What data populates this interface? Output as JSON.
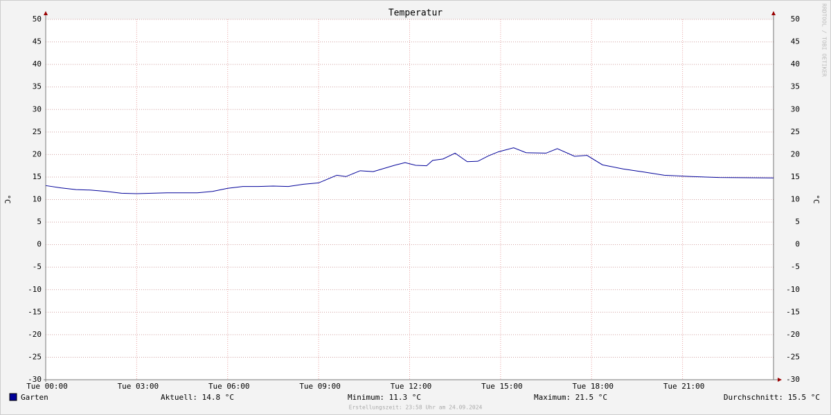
{
  "chart_data": {
    "type": "line",
    "title": "Temperatur",
    "y_label": "°C",
    "watermark": "RRDTOOL / TOBI OETIKER",
    "x": [
      0,
      0.5,
      1,
      1.5,
      2,
      2.5,
      3,
      3.5,
      4,
      4.5,
      5,
      5.5,
      6,
      6.5,
      7,
      7.5,
      8,
      8.5,
      9,
      9.6,
      9.9,
      10.37,
      10.8,
      11.5,
      11.85,
      12.2,
      12.56,
      12.76,
      13.1,
      13.5,
      13.9,
      14.25,
      14.6,
      14.93,
      15.43,
      15.84,
      16.5,
      16.87,
      17.44,
      17.85,
      18.36,
      19.04,
      19.73,
      20.4,
      21.3,
      22.2,
      24
    ],
    "series": [
      {
        "name": "Garten",
        "color": "#000099",
        "values": [
          13.1,
          12.6,
          12.2,
          12.1,
          11.8,
          11.4,
          11.3,
          11.4,
          11.5,
          11.5,
          11.5,
          11.8,
          12.5,
          12.9,
          12.9,
          13.0,
          12.9,
          13.4,
          13.7,
          15.4,
          15.1,
          16.4,
          16.2,
          17.6,
          18.2,
          17.6,
          17.5,
          18.7,
          19.0,
          20.3,
          18.4,
          18.5,
          19.7,
          20.6,
          21.5,
          20.4,
          20.3,
          21.3,
          19.6,
          19.8,
          17.7,
          16.8,
          16.1,
          15.4,
          15.1,
          14.9,
          14.8
        ]
      }
    ],
    "xlim": [
      0,
      24
    ],
    "xticks": [
      {
        "value": 0,
        "label": "Tue 00:00"
      },
      {
        "value": 3,
        "label": "Tue 03:00"
      },
      {
        "value": 6,
        "label": "Tue 06:00"
      },
      {
        "value": 9,
        "label": "Tue 09:00"
      },
      {
        "value": 12,
        "label": "Tue 12:00"
      },
      {
        "value": 15,
        "label": "Tue 15:00"
      },
      {
        "value": 18,
        "label": "Tue 18:00"
      },
      {
        "value": 21,
        "label": "Tue 21:00"
      }
    ],
    "ylim": [
      -30,
      50
    ],
    "yticks": [
      -30,
      -25,
      -20,
      -15,
      -10,
      -5,
      0,
      5,
      10,
      15,
      20,
      25,
      30,
      35,
      40,
      45,
      50
    ],
    "grid": true,
    "stats": [
      "Aktuell: 14.8 °C",
      "Minimum: 11.3 °C",
      "Maximum: 21.5 °C",
      "Durchschnitt: 15.5 °C"
    ],
    "footer": "Erstellungszeit: 23:58 Uhr am 24.09.2024"
  }
}
